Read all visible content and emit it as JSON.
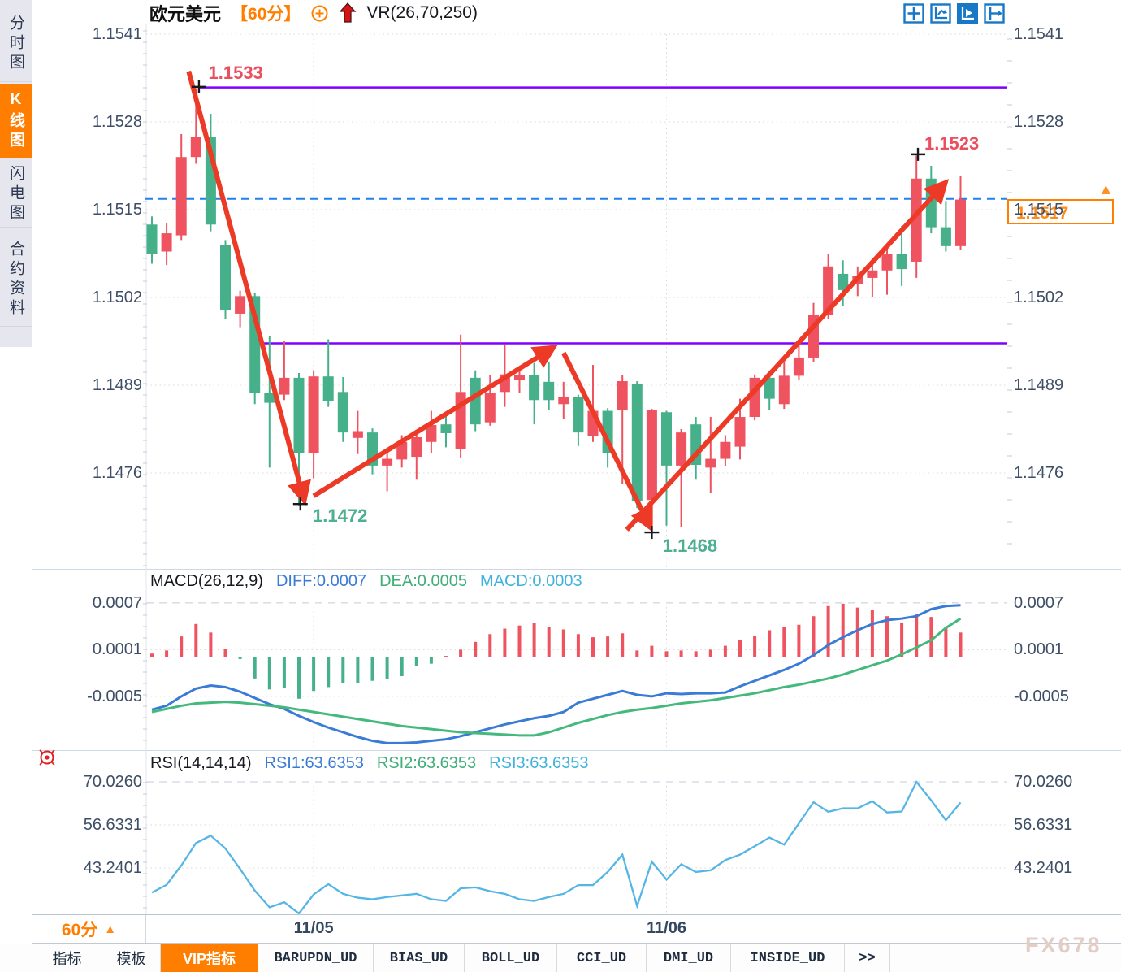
{
  "colors": {
    "up_red": "#ef5360",
    "down_green": "#45b089",
    "purple_line": "#7f00ff",
    "arrow_red": "#ec3a26",
    "dashed_blue": "#1f80f0",
    "diff_blue": "#3a7bd5",
    "dea_green": "#45b97d",
    "rsi_line": "#55b5e5",
    "accent_orange": "#ff7e00",
    "axis_text": "#3d4e66",
    "grid_dot": "#d9d9d9",
    "swing_high_red": "#e94f5f",
    "swing_low_green": "#4faf92"
  },
  "sidebar": {
    "items": [
      {
        "label": "分时图",
        "active": false
      },
      {
        "label": "K线图",
        "active": true
      },
      {
        "label": "闪电图",
        "active": false
      },
      {
        "label": "合约资料",
        "active": false
      }
    ]
  },
  "header": {
    "symbol": "欧元美元",
    "period": "【60分】",
    "indicator_label": "VR(26,70,250)"
  },
  "toolbar": {
    "icons": [
      "crosshair-icon",
      "axis-zoom-icon",
      "axis-play-icon",
      "pan-right-icon"
    ],
    "active_icon": "axis-play-icon"
  },
  "price_box": {
    "value": "1.1517"
  },
  "macd_header": {
    "title": "MACD(26,12,9)",
    "diff": "DIFF:0.0007",
    "dea": "DEA:0.0005",
    "macd": "MACD:0.0003"
  },
  "rsi_header": {
    "title": "RSI(14,14,14)",
    "rsi1": "RSI1:63.6353",
    "rsi2": "RSI2:63.6353",
    "rsi3": "RSI3:63.6353"
  },
  "xaxis": {
    "timeframe": "60分",
    "dropdown_arrow": "▲"
  },
  "bottom_tabs": [
    {
      "label": "指标",
      "active": false
    },
    {
      "label": "模板",
      "active": false
    },
    {
      "label": "VIP指标",
      "active": true
    },
    {
      "label": "BARUPDN_UD",
      "active": false
    },
    {
      "label": "BIAS_UD",
      "active": false
    },
    {
      "label": "BOLL_UD",
      "active": false
    },
    {
      "label": "CCI_UD",
      "active": false
    },
    {
      "label": "DMI_UD",
      "active": false
    },
    {
      "label": "INSIDE_UD",
      "active": false
    },
    {
      "label": ">>",
      "active": false
    }
  ],
  "watermark": "FX678",
  "chart_data": {
    "type": "candlestick",
    "title": "欧元美元 60分 K线图 (EUR/USD 60-minute)",
    "price_axis_labels": [
      "1.1541",
      "1.1528",
      "1.1515",
      "1.1502",
      "1.1489",
      "1.1476"
    ],
    "x_gridlines": [
      {
        "index": 11,
        "label": "11/05"
      },
      {
        "index": 35,
        "label": "11/06"
      }
    ],
    "candles": [
      [
        1.15128,
        1.1514,
        1.1507,
        1.15085
      ],
      [
        1.15088,
        1.1513,
        1.15068,
        1.15115
      ],
      [
        1.15112,
        1.15262,
        1.15105,
        1.15228
      ],
      [
        1.15228,
        1.1533,
        1.15218,
        1.15258
      ],
      [
        1.15258,
        1.15292,
        1.15118,
        1.15128
      ],
      [
        1.15098,
        1.15105,
        1.14988,
        1.15001
      ],
      [
        1.14996,
        1.1503,
        1.14976,
        1.15022
      ],
      [
        1.15022,
        1.15026,
        1.14862,
        1.14878
      ],
      [
        1.14878,
        1.14963,
        1.14768,
        1.14864
      ],
      [
        1.14876,
        1.14955,
        1.14868,
        1.14901
      ],
      [
        1.14901,
        1.14908,
        1.14712,
        1.1479
      ],
      [
        1.1479,
        1.14912,
        1.14752,
        1.14903
      ],
      [
        1.14903,
        1.14958,
        1.14858,
        1.14867
      ],
      [
        1.1488,
        1.14902,
        1.14806,
        1.1482
      ],
      [
        1.14812,
        1.14852,
        1.14788,
        1.14822
      ],
      [
        1.1482,
        1.14826,
        1.14758,
        1.14771
      ],
      [
        1.14771,
        1.14796,
        1.14733,
        1.14781
      ],
      [
        1.1478,
        1.14816,
        1.14768,
        1.14806
      ],
      [
        1.14784,
        1.1482,
        1.1475,
        1.14813
      ],
      [
        1.14806,
        1.14852,
        1.1479,
        1.14831
      ],
      [
        1.14832,
        1.1485,
        1.14798,
        1.14819
      ],
      [
        1.14795,
        1.14965,
        1.14783,
        1.1488
      ],
      [
        1.14901,
        1.14912,
        1.14822,
        1.14832
      ],
      [
        1.14835,
        1.14905,
        1.1483,
        1.14879
      ],
      [
        1.1488,
        1.14951,
        1.14858,
        1.14906
      ],
      [
        1.14898,
        1.14912,
        1.14878,
        1.14905
      ],
      [
        1.14905,
        1.14923,
        1.14832,
        1.14868
      ],
      [
        1.14895,
        1.14925,
        1.14853,
        1.14868
      ],
      [
        1.14862,
        1.14895,
        1.1484,
        1.14872
      ],
      [
        1.14872,
        1.14876,
        1.148,
        1.1482
      ],
      [
        1.14815,
        1.1492,
        1.14806,
        1.14852
      ],
      [
        1.14852,
        1.14856,
        1.14768,
        1.1479
      ],
      [
        1.14853,
        1.14905,
        1.14744,
        1.14896
      ],
      [
        1.14892,
        1.14896,
        1.14708,
        1.14718
      ],
      [
        1.1472,
        1.14855,
        1.14672,
        1.14853
      ],
      [
        1.1485,
        1.14852,
        1.14682,
        1.14771
      ],
      [
        1.14771,
        1.14825,
        1.1468,
        1.1482
      ],
      [
        1.14832,
        1.14843,
        1.1475,
        1.14772
      ],
      [
        1.14768,
        1.14843,
        1.1473,
        1.14781
      ],
      [
        1.14781,
        1.14816,
        1.1477,
        1.14806
      ],
      [
        1.14799,
        1.1487,
        1.1478,
        1.14843
      ],
      [
        1.14843,
        1.14906,
        1.14838,
        1.14901
      ],
      [
        1.14901,
        1.14906,
        1.14853,
        1.1487
      ],
      [
        1.14862,
        1.14925,
        1.14855,
        1.14904
      ],
      [
        1.14904,
        1.1495,
        1.14898,
        1.14931
      ],
      [
        1.14931,
        1.15012,
        1.14925,
        1.14994
      ],
      [
        1.14994,
        1.15084,
        1.14988,
        1.15066
      ],
      [
        1.15055,
        1.15075,
        1.15008,
        1.15031
      ],
      [
        1.1504,
        1.15066,
        1.15022,
        1.15052
      ],
      [
        1.15049,
        1.15072,
        1.1502,
        1.1506
      ],
      [
        1.1506,
        1.15099,
        1.15024,
        1.15085
      ],
      [
        1.15085,
        1.15126,
        1.15037,
        1.15062
      ],
      [
        1.15073,
        1.1523,
        1.15049,
        1.15196
      ],
      [
        1.15196,
        1.15215,
        1.15115,
        1.15124
      ],
      [
        1.15124,
        1.15163,
        1.15088,
        1.15096
      ],
      [
        1.15096,
        1.152,
        1.1509,
        1.15165
      ]
    ],
    "horizontal_lines": [
      {
        "price": 1.15331,
        "start_index": 3.2,
        "style": "solid",
        "color_key": "purple_line"
      },
      {
        "price": 1.14952,
        "start_index": 7.1,
        "style": "solid",
        "color_key": "purple_line"
      },
      {
        "price": 1.15166,
        "start_index": -0.5,
        "style": "dashed",
        "color_key": "dashed_blue"
      }
    ],
    "trend_arrows": [
      {
        "from": {
          "index": 2.5,
          "price": 1.15355
        },
        "to": {
          "index": 10.3,
          "price": 1.14724
        }
      },
      {
        "from": {
          "index": 11.0,
          "price": 1.14726
        },
        "to": {
          "index": 27.1,
          "price": 1.14943
        }
      },
      {
        "from": {
          "index": 28.0,
          "price": 1.14938
        },
        "to": {
          "index": 33.8,
          "price": 1.14684
        }
      },
      {
        "from": {
          "index": 32.3,
          "price": 1.14676
        },
        "to": {
          "index": 53.8,
          "price": 1.15186
        }
      }
    ],
    "cross_markers": [
      {
        "index": 3.2,
        "price": 1.15332
      },
      {
        "index": 10.1,
        "price": 1.14714
      },
      {
        "index": 34.0,
        "price": 1.14672
      },
      {
        "index": 52.1,
        "price": 1.15232
      }
    ],
    "swing_labels": [
      {
        "text": "1.1533",
        "type": "high",
        "index": 5.7,
        "price": 1.15352
      },
      {
        "text": "1.1472",
        "type": "low",
        "index": 12.8,
        "price": 1.14696
      },
      {
        "text": "1.1468",
        "type": "low",
        "index": 36.6,
        "price": 1.14652
      },
      {
        "text": "1.1523",
        "type": "high",
        "index": 54.4,
        "price": 1.15248
      }
    ],
    "macd": {
      "axis_labels": [
        "0.0007",
        "0.0001",
        "-0.0005"
      ],
      "hist": [
        5e-05,
        9e-05,
        0.00027,
        0.00043,
        0.00032,
        0.00011,
        -2e-05,
        -0.00027,
        -0.00041,
        -0.00039,
        -0.00053,
        -0.00043,
        -0.00038,
        -0.00033,
        -0.00033,
        -0.0003,
        -0.00028,
        -0.00024,
        -0.00011,
        -8e-05,
        2e-05,
        0.0001,
        0.0002,
        0.0003,
        0.00037,
        0.00041,
        0.00044,
        0.00039,
        0.00036,
        0.0003,
        0.00026,
        0.00027,
        0.00031,
        9e-05,
        0.00015,
        8e-05,
        9e-05,
        8e-05,
        0.0001,
        0.00015,
        0.00022,
        0.00028,
        0.00035,
        0.00039,
        0.00042,
        0.00053,
        0.00066,
        0.00069,
        0.00064,
        0.00061,
        0.00053,
        0.00045,
        0.00056,
        0.00052,
        0.00039,
        0.00032
      ],
      "diff": [
        -0.00067,
        -0.00062,
        -0.0005,
        -0.0004,
        -0.00036,
        -0.00038,
        -0.00044,
        -0.00052,
        -0.0006,
        -0.00066,
        -0.00075,
        -0.00083,
        -0.0009,
        -0.00096,
        -0.00102,
        -0.00107,
        -0.0011,
        -0.0011,
        -0.00109,
        -0.00107,
        -0.00105,
        -0.00101,
        -0.00096,
        -0.00091,
        -0.00086,
        -0.00082,
        -0.00078,
        -0.00075,
        -0.0007,
        -0.00058,
        -0.00053,
        -0.00048,
        -0.00043,
        -0.00048,
        -0.0005,
        -0.00046,
        -0.00047,
        -0.00046,
        -0.00046,
        -0.00045,
        -0.00037,
        -0.0003,
        -0.00023,
        -0.00016,
        -8e-05,
        3e-05,
        0.00016,
        0.00026,
        0.00035,
        0.00043,
        0.00048,
        0.0005,
        0.00053,
        0.00062,
        0.00066,
        0.00067
      ],
      "dea": [
        -0.0007,
        -0.00066,
        -0.00062,
        -0.00059,
        -0.00058,
        -0.00057,
        -0.00058,
        -0.0006,
        -0.00062,
        -0.00064,
        -0.00067,
        -0.0007,
        -0.00073,
        -0.00076,
        -0.00079,
        -0.00082,
        -0.00085,
        -0.00088,
        -0.0009,
        -0.00092,
        -0.00094,
        -0.00096,
        -0.00097,
        -0.00098,
        -0.00099,
        -0.001,
        -0.001,
        -0.00096,
        -0.0009,
        -0.00084,
        -0.00079,
        -0.00074,
        -0.0007,
        -0.00067,
        -0.00065,
        -0.00062,
        -0.00059,
        -0.00057,
        -0.00055,
        -0.00052,
        -0.00049,
        -0.00046,
        -0.00042,
        -0.00038,
        -0.00035,
        -0.00031,
        -0.00027,
        -0.00022,
        -0.00016,
        -0.0001,
        -4e-05,
        4e-05,
        0.00013,
        0.00022,
        0.00038,
        0.0005
      ]
    },
    "rsi": {
      "axis_labels": [
        "70.0260",
        "56.6331",
        "43.2401"
      ],
      "values": [
        35.6,
        38.0,
        44.0,
        51.0,
        53.3,
        49.3,
        42.9,
        36.2,
        31.0,
        32.6,
        29.1,
        35.0,
        38.2,
        35.2,
        34.0,
        33.5,
        34.2,
        34.7,
        35.2,
        33.5,
        33.0,
        36.9,
        37.2,
        36.0,
        35.2,
        33.5,
        33.0,
        34.2,
        35.2,
        37.9,
        37.9,
        42.0,
        47.4,
        31.4,
        45.2,
        39.6,
        44.4,
        42.0,
        42.5,
        45.7,
        47.4,
        50.0,
        52.7,
        50.5,
        57.1,
        63.7,
        60.7,
        61.8,
        61.8,
        64.0,
        60.5,
        60.8,
        70.0,
        64.3,
        58.1,
        63.6
      ]
    }
  }
}
